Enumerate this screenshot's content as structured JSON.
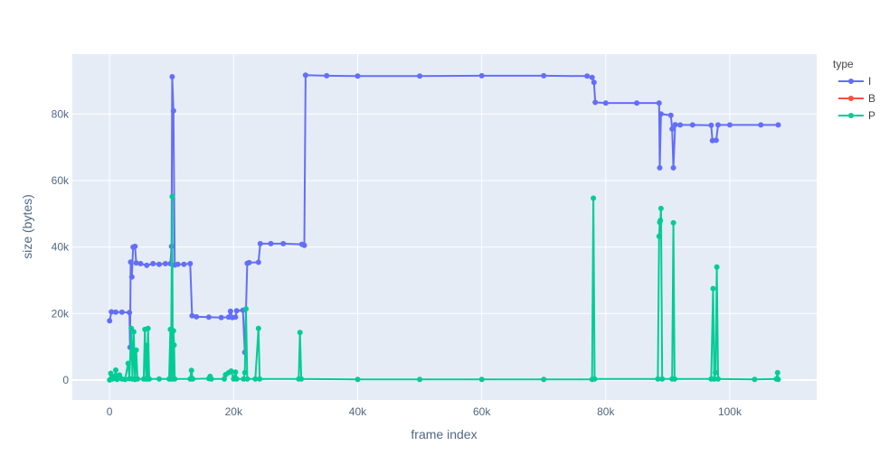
{
  "chart_data": {
    "type": "line",
    "xlabel": "frame index",
    "ylabel": "size (bytes)",
    "xlim": [
      -6000,
      114000
    ],
    "ylim": [
      -6000,
      98000
    ],
    "x_ticks": [
      {
        "value": 0,
        "label": "0"
      },
      {
        "value": 20000,
        "label": "20k"
      },
      {
        "value": 40000,
        "label": "40k"
      },
      {
        "value": 60000,
        "label": "60k"
      },
      {
        "value": 80000,
        "label": "80k"
      },
      {
        "value": 100000,
        "label": "100k"
      }
    ],
    "y_ticks": [
      {
        "value": 0,
        "label": "0"
      },
      {
        "value": 20000,
        "label": "20k"
      },
      {
        "value": 40000,
        "label": "40k"
      },
      {
        "value": 60000,
        "label": "60k"
      },
      {
        "value": 80000,
        "label": "80k"
      }
    ],
    "grid": true,
    "legend_title": "type",
    "legend_position": "right",
    "series": [
      {
        "name": "I",
        "color": "#636efa",
        "points": [
          [
            0,
            17800
          ],
          [
            300,
            20500
          ],
          [
            1000,
            20400
          ],
          [
            2000,
            20400
          ],
          [
            3200,
            20300
          ],
          [
            3300,
            9800
          ],
          [
            3400,
            35500
          ],
          [
            3600,
            31000
          ],
          [
            3800,
            40000
          ],
          [
            4100,
            40200
          ],
          [
            4300,
            35200
          ],
          [
            5000,
            35000
          ],
          [
            6000,
            34500
          ],
          [
            7000,
            35000
          ],
          [
            8000,
            34800
          ],
          [
            9000,
            35000
          ],
          [
            9800,
            35000
          ],
          [
            10000,
            40200
          ],
          [
            10100,
            91200
          ],
          [
            10300,
            81000
          ],
          [
            10500,
            34600
          ],
          [
            11000,
            34800
          ],
          [
            12000,
            34800
          ],
          [
            13000,
            35000
          ],
          [
            13300,
            19300
          ],
          [
            14000,
            19000
          ],
          [
            16000,
            18900
          ],
          [
            18000,
            18800
          ],
          [
            19200,
            18900
          ],
          [
            19500,
            20700
          ],
          [
            19800,
            18800
          ],
          [
            20300,
            18900
          ],
          [
            20500,
            20800
          ],
          [
            21500,
            21000
          ],
          [
            21800,
            8300
          ],
          [
            22200,
            35100
          ],
          [
            22500,
            35300
          ],
          [
            24000,
            35400
          ],
          [
            24300,
            41000
          ],
          [
            26000,
            41000
          ],
          [
            28000,
            41000
          ],
          [
            31000,
            40800
          ],
          [
            31400,
            40500
          ],
          [
            31600,
            91700
          ],
          [
            35000,
            91500
          ],
          [
            40000,
            91400
          ],
          [
            50000,
            91400
          ],
          [
            60000,
            91500
          ],
          [
            70000,
            91500
          ],
          [
            77000,
            91400
          ],
          [
            77800,
            91000
          ],
          [
            78100,
            89500
          ],
          [
            78300,
            83500
          ],
          [
            80000,
            83300
          ],
          [
            85000,
            83300
          ],
          [
            88600,
            83300
          ],
          [
            88700,
            63800
          ],
          [
            88900,
            80000
          ],
          [
            90500,
            79600
          ],
          [
            90700,
            75500
          ],
          [
            90900,
            63800
          ],
          [
            91200,
            76800
          ],
          [
            92000,
            76700
          ],
          [
            94000,
            76700
          ],
          [
            97000,
            76600
          ],
          [
            97200,
            72000
          ],
          [
            97800,
            72100
          ],
          [
            98100,
            76700
          ],
          [
            100000,
            76700
          ],
          [
            105000,
            76700
          ],
          [
            107800,
            76700
          ]
        ]
      },
      {
        "name": "B",
        "color": "#ef553b",
        "points": []
      },
      {
        "name": "P",
        "color": "#00cc96",
        "points": [
          [
            0,
            0
          ],
          [
            200,
            2000
          ],
          [
            500,
            300
          ],
          [
            800,
            1000
          ],
          [
            1000,
            3000
          ],
          [
            1200,
            200
          ],
          [
            1600,
            1500
          ],
          [
            2000,
            300
          ],
          [
            2500,
            200
          ],
          [
            3000,
            5000
          ],
          [
            3200,
            400
          ],
          [
            3500,
            15500
          ],
          [
            3700,
            300
          ],
          [
            3900,
            14500
          ],
          [
            4100,
            200
          ],
          [
            4300,
            9000
          ],
          [
            4500,
            300
          ],
          [
            5500,
            300
          ],
          [
            5700,
            15200
          ],
          [
            5900,
            300
          ],
          [
            6000,
            10400
          ],
          [
            6100,
            300
          ],
          [
            6200,
            15500
          ],
          [
            6400,
            300
          ],
          [
            8000,
            300
          ],
          [
            9600,
            300
          ],
          [
            9800,
            15200
          ],
          [
            9900,
            300
          ],
          [
            10100,
            55200
          ],
          [
            10200,
            300
          ],
          [
            10300,
            14800
          ],
          [
            10400,
            10500
          ],
          [
            10500,
            300
          ],
          [
            13000,
            300
          ],
          [
            13200,
            2900
          ],
          [
            13400,
            300
          ],
          [
            16000,
            400
          ],
          [
            16200,
            1100
          ],
          [
            16400,
            300
          ],
          [
            18500,
            300
          ],
          [
            18700,
            1600
          ],
          [
            19200,
            2200
          ],
          [
            19600,
            2700
          ],
          [
            20000,
            300
          ],
          [
            20300,
            2400
          ],
          [
            20500,
            300
          ],
          [
            21600,
            300
          ],
          [
            21800,
            2200
          ],
          [
            22000,
            21400
          ],
          [
            22200,
            300
          ],
          [
            23500,
            300
          ],
          [
            24000,
            15500
          ],
          [
            24200,
            300
          ],
          [
            30500,
            300
          ],
          [
            30700,
            14300
          ],
          [
            30900,
            300
          ],
          [
            40000,
            200
          ],
          [
            50000,
            200
          ],
          [
            60000,
            200
          ],
          [
            70000,
            200
          ],
          [
            77800,
            200
          ],
          [
            78000,
            54700
          ],
          [
            78200,
            300
          ],
          [
            88400,
            300
          ],
          [
            88600,
            43200
          ],
          [
            88700,
            47400
          ],
          [
            88800,
            48000
          ],
          [
            88900,
            51600
          ],
          [
            89100,
            300
          ],
          [
            90700,
            300
          ],
          [
            90900,
            47300
          ],
          [
            91100,
            300
          ],
          [
            97000,
            300
          ],
          [
            97300,
            27500
          ],
          [
            97500,
            300
          ],
          [
            97700,
            2200
          ],
          [
            97900,
            34000
          ],
          [
            98100,
            300
          ],
          [
            104000,
            200
          ],
          [
            107500,
            300
          ],
          [
            107700,
            2200
          ],
          [
            107800,
            200
          ]
        ]
      }
    ]
  }
}
